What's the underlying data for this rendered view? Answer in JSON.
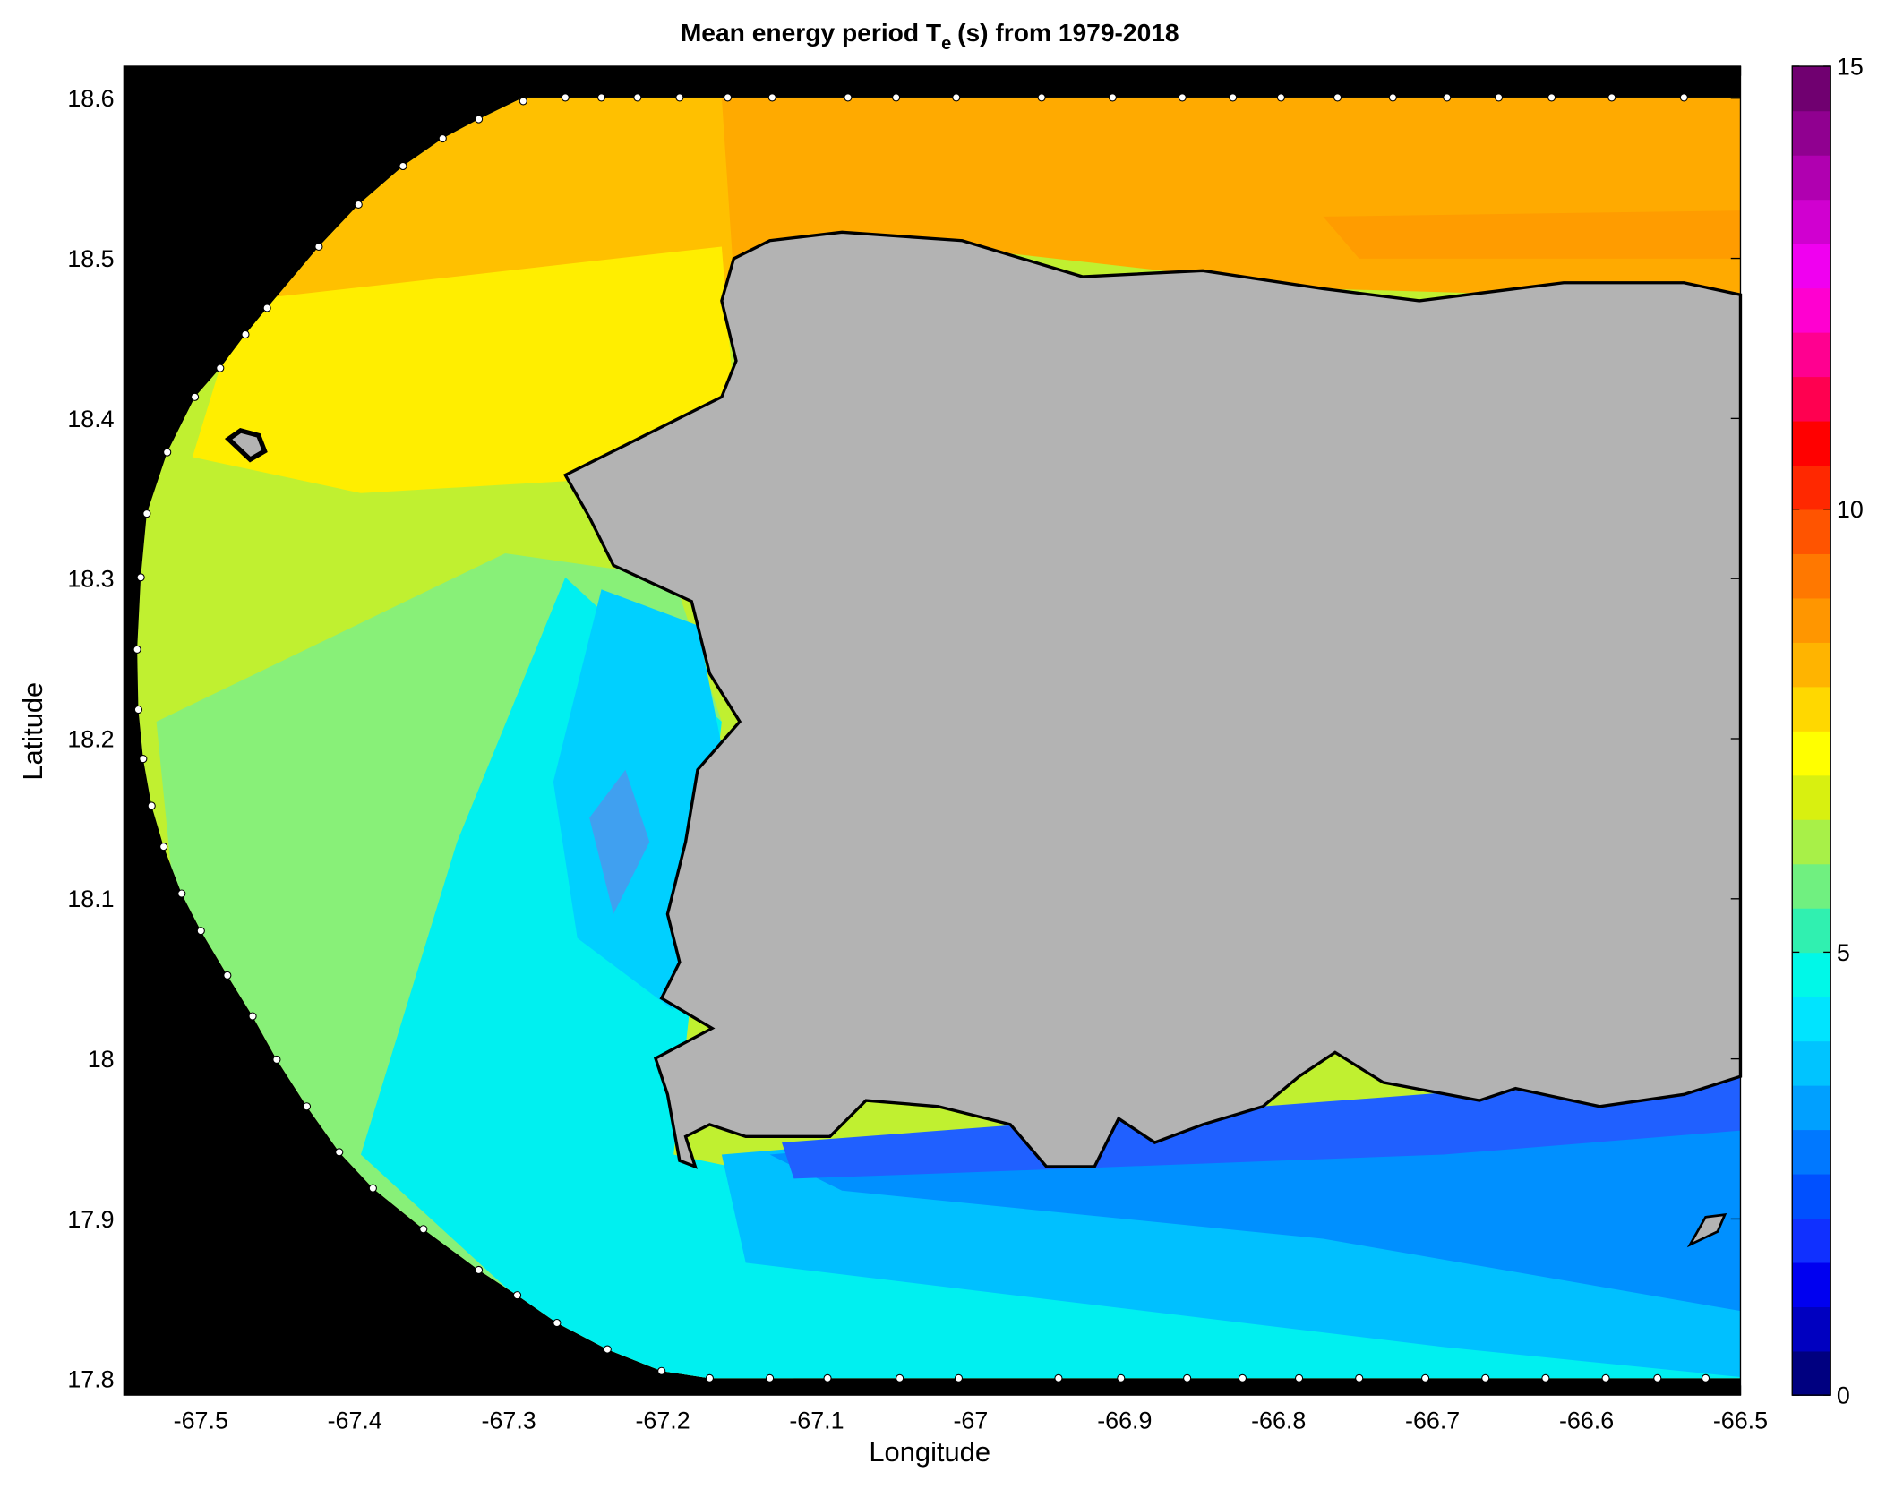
{
  "chart_data": {
    "type": "contour-map",
    "title": {
      "main": "Mean energy period T",
      "subscript": "e",
      "rest": "(s) from 1979-2018"
    },
    "x_label": "Longitude",
    "y_label": "Latitude",
    "xlim": [
      -67.55,
      -66.5
    ],
    "ylim": [
      17.79,
      18.62
    ],
    "xticks": [
      -67.5,
      -67.4,
      -67.3,
      -67.2,
      -67.1,
      -67,
      -66.9,
      -66.8,
      -66.7,
      -66.6,
      -66.5
    ],
    "yticks": [
      17.8,
      17.9,
      18,
      18.1,
      18.2,
      18.3,
      18.4,
      18.5,
      18.6
    ],
    "colorbar": {
      "lim": [
        0,
        15
      ],
      "ticks": [
        0,
        5,
        10,
        15
      ],
      "colormap": [
        "#000080",
        "#0000c0",
        "#0000f0",
        "#1030ff",
        "#0050ff",
        "#0078ff",
        "#00a0ff",
        "#00c4ff",
        "#00e4ff",
        "#00f8e8",
        "#30f0b0",
        "#70f080",
        "#a8f048",
        "#d8f010",
        "#ffff00",
        "#ffd800",
        "#ffb400",
        "#ff9600",
        "#ff7800",
        "#ff5400",
        "#ff2800",
        "#ff0000",
        "#ff0050",
        "#ff0090",
        "#ff00d0",
        "#f000f0",
        "#d000d0",
        "#b000b0",
        "#900090",
        "#700070"
      ]
    }
  }
}
